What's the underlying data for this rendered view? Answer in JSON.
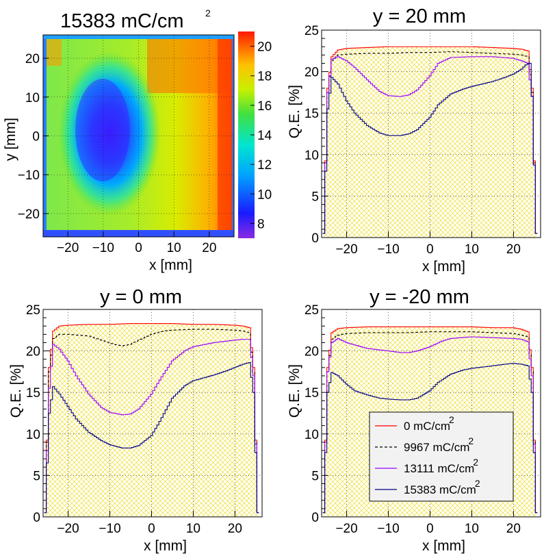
{
  "colors": {
    "series": [
      "#ff0000",
      "#000000",
      "#9900ff",
      "#000080"
    ],
    "hatch": "#e8d900",
    "grid": "#000000"
  },
  "chart_data": [
    {
      "id": "map",
      "type": "heatmap",
      "title": "15383 mC/cm",
      "title_sup": "2",
      "xlabel": "x [mm]",
      "ylabel": "y [mm]",
      "xlim": [
        -27,
        27
      ],
      "ylim": [
        -26,
        26
      ],
      "xticks": [
        "-20",
        "-10",
        "0",
        "10",
        "20"
      ],
      "yticks": [
        "-20",
        "-10",
        "0",
        "10",
        "20"
      ],
      "zlim": [
        7,
        21
      ],
      "zticks": [
        "8",
        "10",
        "12",
        "14",
        "16",
        "18",
        "20"
      ],
      "grid": true,
      "description_values": {
        "center_low": 7.5,
        "right_high": 20,
        "edge": 19
      }
    },
    {
      "id": "y20",
      "type": "line",
      "title": "y = 20 mm",
      "xlabel": "x [mm]",
      "ylabel": "Q.E.  [%]",
      "xlim": [
        -26,
        26.5
      ],
      "ylim": [
        0,
        25
      ],
      "xticks": [
        "-20",
        "-10",
        "0",
        "10",
        "20"
      ],
      "yticks": [
        "0",
        "5",
        "10",
        "15",
        "20",
        "25"
      ],
      "grid": true,
      "series": [
        {
          "key": "a",
          "x": [
            -25.5,
            -24.5,
            -23.5,
            -22,
            -20,
            -15,
            -10,
            -5,
            0,
            5,
            10,
            15,
            20,
            22,
            23.5,
            24.5,
            25.5
          ],
          "values": [
            0.5,
            18,
            21.8,
            22.6,
            22.8,
            22.9,
            23.0,
            23.0,
            23.0,
            23.0,
            23.0,
            22.9,
            22.8,
            22.7,
            22.5,
            18,
            0.5
          ]
        },
        {
          "key": "b",
          "x": [
            -25.5,
            -24.5,
            -23.5,
            -22,
            -20,
            -15,
            -10,
            -5,
            0,
            5,
            10,
            15,
            20,
            22,
            23.5,
            24.5,
            25.5
          ],
          "values": [
            0.5,
            17.5,
            21.3,
            22.0,
            22.1,
            22.2,
            22.2,
            22.3,
            22.3,
            22.4,
            22.3,
            22.2,
            22.1,
            22.0,
            21.8,
            17.5,
            0.5
          ]
        },
        {
          "key": "c",
          "x": [
            -25.5,
            -24.5,
            -23.5,
            -22,
            -20,
            -18,
            -15,
            -12,
            -10,
            -7,
            -5,
            -3,
            0,
            2,
            5,
            10,
            15,
            20,
            22,
            23.5,
            24.5,
            25.5
          ],
          "values": [
            0.5,
            17.5,
            21.5,
            21.8,
            21.3,
            20.5,
            19.0,
            17.6,
            17.1,
            17.0,
            17.2,
            17.8,
            19.5,
            21.0,
            21.7,
            21.8,
            21.8,
            21.6,
            21.3,
            21.0,
            17,
            0.5
          ]
        },
        {
          "key": "d",
          "x": [
            -25.5,
            -24.5,
            -23.5,
            -22,
            -20,
            -18,
            -15,
            -12,
            -10,
            -7,
            -5,
            -3,
            0,
            2,
            5,
            8,
            10,
            15,
            18,
            20,
            22,
            23,
            24,
            24.5,
            25.5
          ],
          "values": [
            0.5,
            15.5,
            19.3,
            18.5,
            16.5,
            15.0,
            13.5,
            12.6,
            12.3,
            12.3,
            12.5,
            13.0,
            14.5,
            16.0,
            17.3,
            17.9,
            18.2,
            18.8,
            19.3,
            19.7,
            20.3,
            20.8,
            21.0,
            17,
            0.5
          ]
        }
      ]
    },
    {
      "id": "y0",
      "type": "line",
      "title": "y = 0 mm",
      "xlabel": "x [mm]",
      "ylabel": "Q.E.  [%]",
      "xlim": [
        -26,
        26.5
      ],
      "ylim": [
        0,
        25
      ],
      "xticks": [
        "-20",
        "-10",
        "0",
        "10",
        "20"
      ],
      "yticks": [
        "0",
        "5",
        "10",
        "15",
        "20",
        "25"
      ],
      "grid": true,
      "series": [
        {
          "key": "a",
          "x": [
            -25.5,
            -24.5,
            -23.5,
            -22,
            -20,
            -15,
            -10,
            -5,
            0,
            5,
            10,
            15,
            20,
            22,
            23.5,
            24.5,
            25.5
          ],
          "values": [
            0.5,
            18,
            22.4,
            23.0,
            23.1,
            23.2,
            23.2,
            23.3,
            23.3,
            23.3,
            23.2,
            23.2,
            23.1,
            23.0,
            22.8,
            18,
            0.5
          ]
        },
        {
          "key": "b",
          "x": [
            -25.5,
            -24.5,
            -23.5,
            -22,
            -20,
            -15,
            -12,
            -9,
            -7,
            -5,
            -3,
            0,
            3,
            5,
            10,
            15,
            20,
            22,
            23.5,
            24.5,
            25.5
          ],
          "values": [
            0.5,
            17.5,
            21.5,
            22.0,
            22.0,
            21.8,
            21.3,
            20.8,
            20.6,
            20.8,
            21.3,
            22.0,
            22.4,
            22.5,
            22.6,
            22.6,
            22.5,
            22.4,
            22.2,
            17.5,
            0.5
          ]
        },
        {
          "key": "c",
          "x": [
            -25.5,
            -24.5,
            -23.5,
            -22,
            -20,
            -18,
            -15,
            -12,
            -10,
            -7,
            -5,
            -3,
            0,
            2,
            5,
            8,
            10,
            15,
            20,
            22,
            23.5,
            24.5,
            25.5
          ],
          "values": [
            0.5,
            15.5,
            20.8,
            20.2,
            18.8,
            17.0,
            14.8,
            13.2,
            12.6,
            12.3,
            12.4,
            13.0,
            14.8,
            16.5,
            18.8,
            20.0,
            20.5,
            21.0,
            21.3,
            21.4,
            21.4,
            17,
            0.5
          ]
        },
        {
          "key": "d",
          "x": [
            -25.5,
            -24.5,
            -23.5,
            -22,
            -20,
            -18,
            -15,
            -12,
            -10,
            -7,
            -5,
            -3,
            0,
            2,
            5,
            8,
            10,
            15,
            18,
            20,
            22,
            23.5,
            24.5,
            25.5
          ],
          "values": [
            0.5,
            12.5,
            15.7,
            14.8,
            13.3,
            11.8,
            10.2,
            9.2,
            8.7,
            8.3,
            8.3,
            8.6,
            9.8,
            11.5,
            14.3,
            15.8,
            16.4,
            17.1,
            17.6,
            18.0,
            18.4,
            18.6,
            15,
            0.5
          ]
        }
      ]
    },
    {
      "id": "ym20",
      "type": "line",
      "title": "y = -20 mm",
      "xlabel": "x [mm]",
      "ylabel": "Q.E.  [%]",
      "xlim": [
        -26,
        26.5
      ],
      "ylim": [
        0,
        25
      ],
      "xticks": [
        "-20",
        "-10",
        "0",
        "10",
        "20"
      ],
      "yticks": [
        "0",
        "5",
        "10",
        "15",
        "20",
        "25"
      ],
      "grid": true,
      "series": [
        {
          "key": "a",
          "x": [
            -25.5,
            -24.5,
            -23.5,
            -22,
            -20,
            -15,
            -10,
            -5,
            0,
            5,
            10,
            15,
            20,
            22,
            23.5,
            24.5,
            25.5
          ],
          "values": [
            0.5,
            18,
            22.2,
            22.7,
            22.8,
            22.9,
            22.9,
            22.9,
            22.9,
            22.9,
            22.9,
            22.8,
            22.8,
            22.6,
            22.3,
            18,
            0.5
          ]
        },
        {
          "key": "b",
          "x": [
            -25.5,
            -24.5,
            -23.5,
            -22,
            -20,
            -15,
            -10,
            -5,
            0,
            5,
            10,
            15,
            20,
            22,
            23.5,
            24.5,
            25.5
          ],
          "values": [
            0.5,
            17.5,
            21.4,
            21.9,
            22.1,
            22.2,
            22.2,
            22.2,
            22.3,
            22.3,
            22.3,
            22.2,
            22.1,
            21.9,
            21.7,
            17.5,
            0.5
          ]
        },
        {
          "key": "c",
          "x": [
            -25.5,
            -24.5,
            -23.5,
            -22,
            -20,
            -15,
            -10,
            -7,
            -5,
            -3,
            0,
            3,
            5,
            10,
            15,
            20,
            22,
            23.5,
            24.5,
            25.5
          ],
          "values": [
            0.5,
            17.5,
            21.0,
            21.5,
            21.0,
            20.3,
            20.0,
            19.8,
            19.8,
            20.0,
            20.5,
            21.2,
            21.5,
            21.7,
            21.6,
            21.5,
            21.4,
            21.1,
            17,
            0.5
          ]
        },
        {
          "key": "d",
          "x": [
            -25.5,
            -24.5,
            -23.5,
            -22,
            -20,
            -18,
            -15,
            -12,
            -10,
            -7,
            -5,
            -3,
            0,
            2,
            5,
            8,
            10,
            15,
            18,
            20,
            22,
            23.5,
            24.5,
            25.5
          ],
          "values": [
            0.5,
            15,
            17.4,
            17.0,
            16.0,
            15.2,
            14.7,
            14.3,
            14.2,
            14.1,
            14.1,
            14.3,
            15.2,
            16.2,
            17.2,
            17.7,
            17.9,
            18.2,
            18.4,
            18.5,
            18.4,
            18.2,
            15,
            0.5
          ]
        }
      ]
    }
  ],
  "legend": {
    "placement": "bottom-right",
    "entries": [
      {
        "label": "0 mC/cm",
        "sup": "2",
        "style": "solid"
      },
      {
        "label": "9967 mC/cm",
        "sup": "2",
        "style": "dashed"
      },
      {
        "label": "13111 mC/cm",
        "sup": "2",
        "style": "solid"
      },
      {
        "label": "15383 mC/cm",
        "sup": "2",
        "style": "solid"
      }
    ]
  }
}
